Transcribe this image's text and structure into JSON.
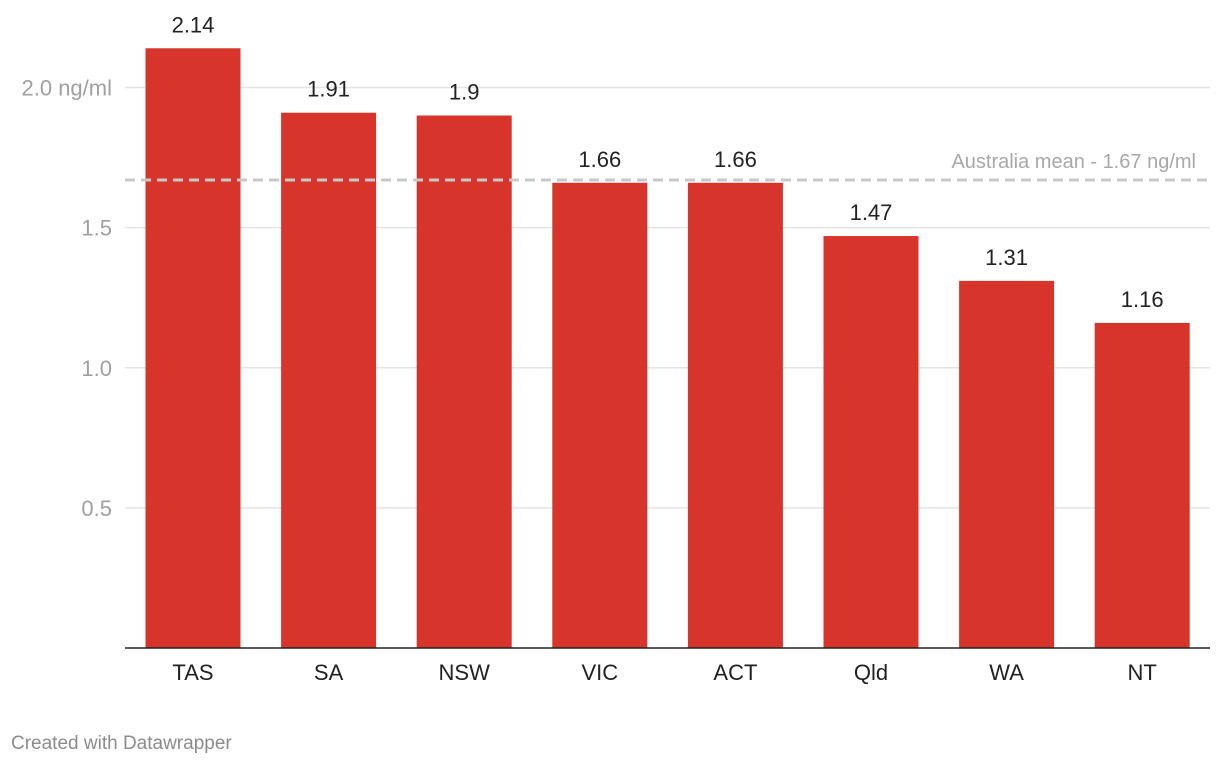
{
  "chart_data": {
    "type": "bar",
    "categories": [
      "TAS",
      "SA",
      "NSW",
      "VIC",
      "ACT",
      "Qld",
      "WA",
      "NT"
    ],
    "values": [
      2.14,
      1.91,
      1.9,
      1.66,
      1.66,
      1.47,
      1.31,
      1.16
    ],
    "value_labels": [
      "2.14",
      "1.91",
      "1.9",
      "1.66",
      "1.66",
      "1.47",
      "1.31",
      "1.16"
    ],
    "ylim": [
      0,
      2.25
    ],
    "yticks": [
      {
        "value": 0.5,
        "label": "0.5"
      },
      {
        "value": 1.0,
        "label": "1.0"
      },
      {
        "value": 1.5,
        "label": "1.5"
      },
      {
        "value": 2.0,
        "label": "2.0 ng/ml"
      }
    ],
    "grid": true,
    "reference_line": {
      "value": 1.67,
      "label": "Australia mean - 1.67 ng/ml"
    },
    "colors": {
      "bar": "#d7352b",
      "grid": "#e4e4e4",
      "reference_line": "#c8c8c8",
      "axis": "#222222"
    }
  },
  "footer": {
    "credit": "Created with Datawrapper"
  }
}
